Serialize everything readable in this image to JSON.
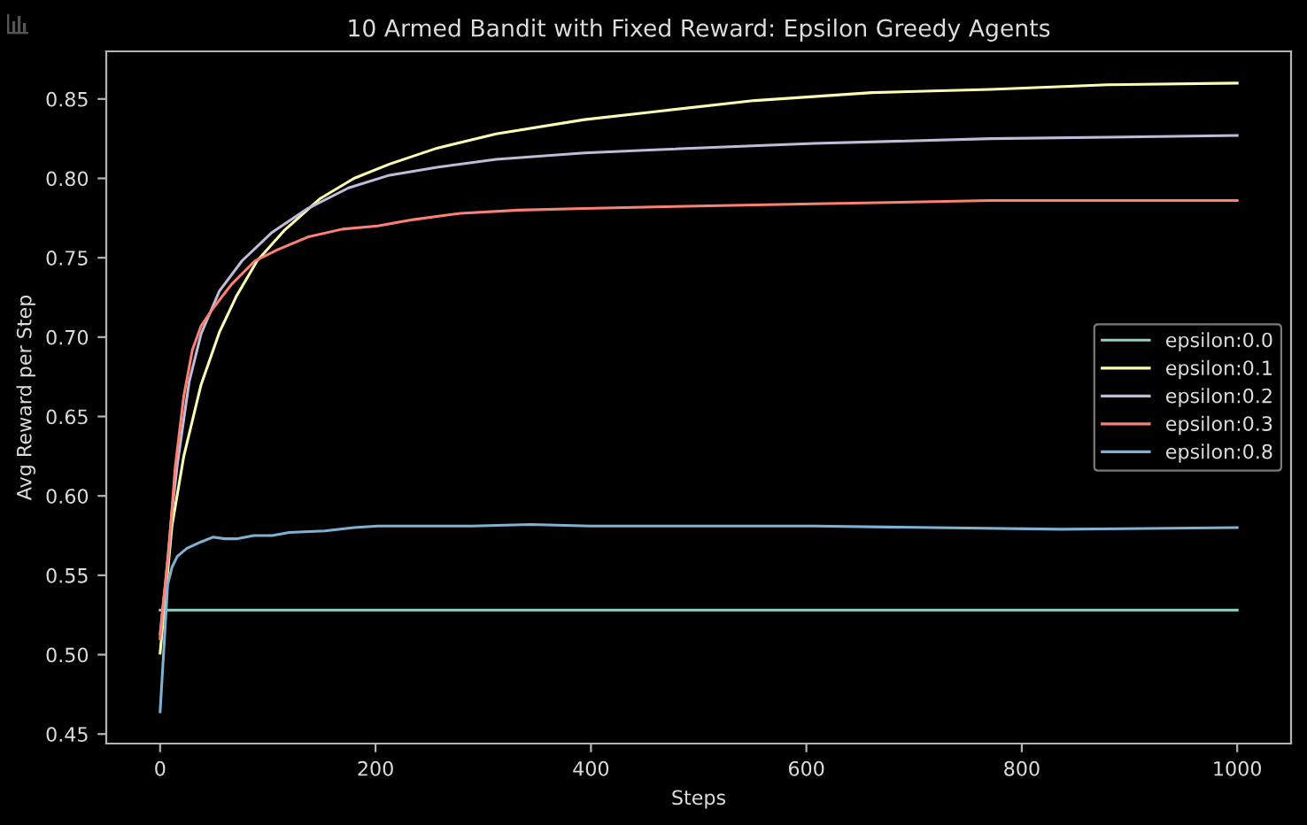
{
  "chart_data": {
    "type": "line",
    "title": "10 Armed Bandit with Fixed Reward: Epsilon Greedy Agents",
    "xlabel": "Steps",
    "ylabel": "Avg Reward per Step",
    "xlim": [
      -50,
      1050
    ],
    "ylim": [
      0.444,
      0.88
    ],
    "xticks": [
      0,
      200,
      400,
      600,
      800,
      1000
    ],
    "yticks": [
      0.45,
      {
        "value": 0.5,
        "label": "0.50"
      },
      0.55,
      {
        "value": 0.6,
        "label": "0.60"
      },
      0.65,
      {
        "value": 0.7,
        "label": "0.70"
      },
      0.75,
      {
        "value": 0.8,
        "label": "0.80"
      },
      0.85
    ],
    "grid": false,
    "legend": "right",
    "marker": "none",
    "line_style": "solid",
    "series": [
      {
        "name": "epsilon:0.0",
        "color": "#8dd3c7",
        "x": [
          0,
          1000
        ],
        "values": [
          0.528,
          0.528
        ]
      },
      {
        "name": "epsilon:0.1",
        "color": "#feffb3",
        "x": [
          0,
          11,
          22,
          38,
          55,
          71,
          90,
          115,
          148,
          180,
          213,
          257,
          312,
          394,
          459,
          552,
          661,
          771,
          880,
          1000
        ],
        "values": [
          0.501,
          0.581,
          0.625,
          0.67,
          0.703,
          0.726,
          0.748,
          0.767,
          0.787,
          0.8,
          0.809,
          0.819,
          0.828,
          0.837,
          0.842,
          0.849,
          0.854,
          0.856,
          0.859,
          0.86
        ]
      },
      {
        "name": "epsilon:0.2",
        "color": "#bfbbd9",
        "x": [
          0,
          5,
          11,
          16,
          27,
          38,
          55,
          76,
          104,
          137,
          175,
          213,
          257,
          312,
          394,
          459,
          607,
          771,
          1000
        ],
        "values": [
          0.513,
          0.545,
          0.59,
          0.62,
          0.672,
          0.702,
          0.729,
          0.748,
          0.766,
          0.781,
          0.794,
          0.802,
          0.807,
          0.812,
          0.816,
          0.818,
          0.822,
          0.825,
          0.827
        ]
      },
      {
        "name": "epsilon:0.3",
        "color": "#fa8174",
        "x": [
          0,
          3,
          8,
          14,
          22,
          30,
          38,
          49,
          66,
          88,
          109,
          137,
          169,
          202,
          235,
          279,
          333,
          394,
          459,
          607,
          771,
          1000
        ],
        "values": [
          0.51,
          0.533,
          0.565,
          0.618,
          0.663,
          0.692,
          0.707,
          0.718,
          0.733,
          0.748,
          0.755,
          0.763,
          0.768,
          0.77,
          0.774,
          0.778,
          0.78,
          0.781,
          0.782,
          0.784,
          0.786,
          0.786
        ]
      },
      {
        "name": "epsilon:0.8",
        "color": "#81b1d2",
        "x": [
          0,
          7,
          11,
          16,
          25,
          38,
          49,
          60,
          71,
          87,
          104,
          120,
          153,
          180,
          202,
          290,
          344,
          399,
          459,
          607,
          716,
          836,
          1000
        ],
        "values": [
          0.464,
          0.544,
          0.555,
          0.562,
          0.567,
          0.571,
          0.574,
          0.573,
          0.573,
          0.575,
          0.575,
          0.577,
          0.578,
          0.58,
          0.581,
          0.581,
          0.582,
          0.581,
          0.581,
          0.581,
          0.58,
          0.579,
          0.58
        ]
      }
    ]
  }
}
